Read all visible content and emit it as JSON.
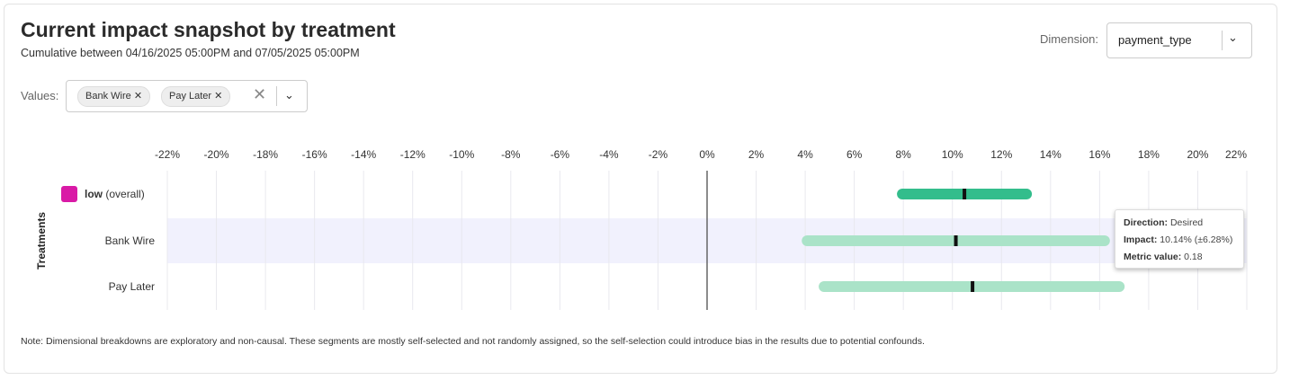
{
  "header": {
    "title": "Current impact snapshot by treatment",
    "subtitle": "Cumulative between 04/16/2025 05:00PM and 07/05/2025 05:00PM"
  },
  "dimension": {
    "label": "Dimension:",
    "value": "payment_type"
  },
  "values_filter": {
    "label": "Values:",
    "chips": [
      "Bank Wire",
      "Pay Later"
    ]
  },
  "tooltip": {
    "direction_label": "Direction:",
    "direction": "Desired",
    "impact_label": "Impact:",
    "impact": "10.14% (±6.28%)",
    "metric_label": "Metric value:",
    "metric": "0.18"
  },
  "note": "Note: Dimensional breakdowns are exploratory and non-causal. These segments are mostly self-selected and not randomly assigned, so the self-selection could introduce bias in the results due to potential confounds.",
  "chart_data": {
    "type": "interval",
    "ylabel": "Treatments",
    "xlim": [
      -22,
      22
    ],
    "x_ticks": [
      "-22%",
      "-20%",
      "-18%",
      "-16%",
      "-14%",
      "-12%",
      "-10%",
      "-8%",
      "-6%",
      "-4%",
      "-2%",
      "0%",
      "2%",
      "4%",
      "6%",
      "8%",
      "10%",
      "12%",
      "14%",
      "16%",
      "18%",
      "20%",
      "22%"
    ],
    "grid": true,
    "highlighted_row": "Bank Wire",
    "colors": {
      "overall": "#33bd8c",
      "segment": "#aae3c8",
      "legend_swatch": "#d91aa6",
      "highlight": "#f1f1fd"
    },
    "rows": [
      {
        "label_bold": "low",
        "label": "(overall)",
        "low": 7.74,
        "point": 10.49,
        "high": 13.24
      },
      {
        "label": "Bank Wire",
        "low": 3.86,
        "point": 10.14,
        "high": 16.42
      },
      {
        "label": "Pay Later",
        "low": 4.55,
        "point": 10.82,
        "high": 17.02
      }
    ]
  }
}
